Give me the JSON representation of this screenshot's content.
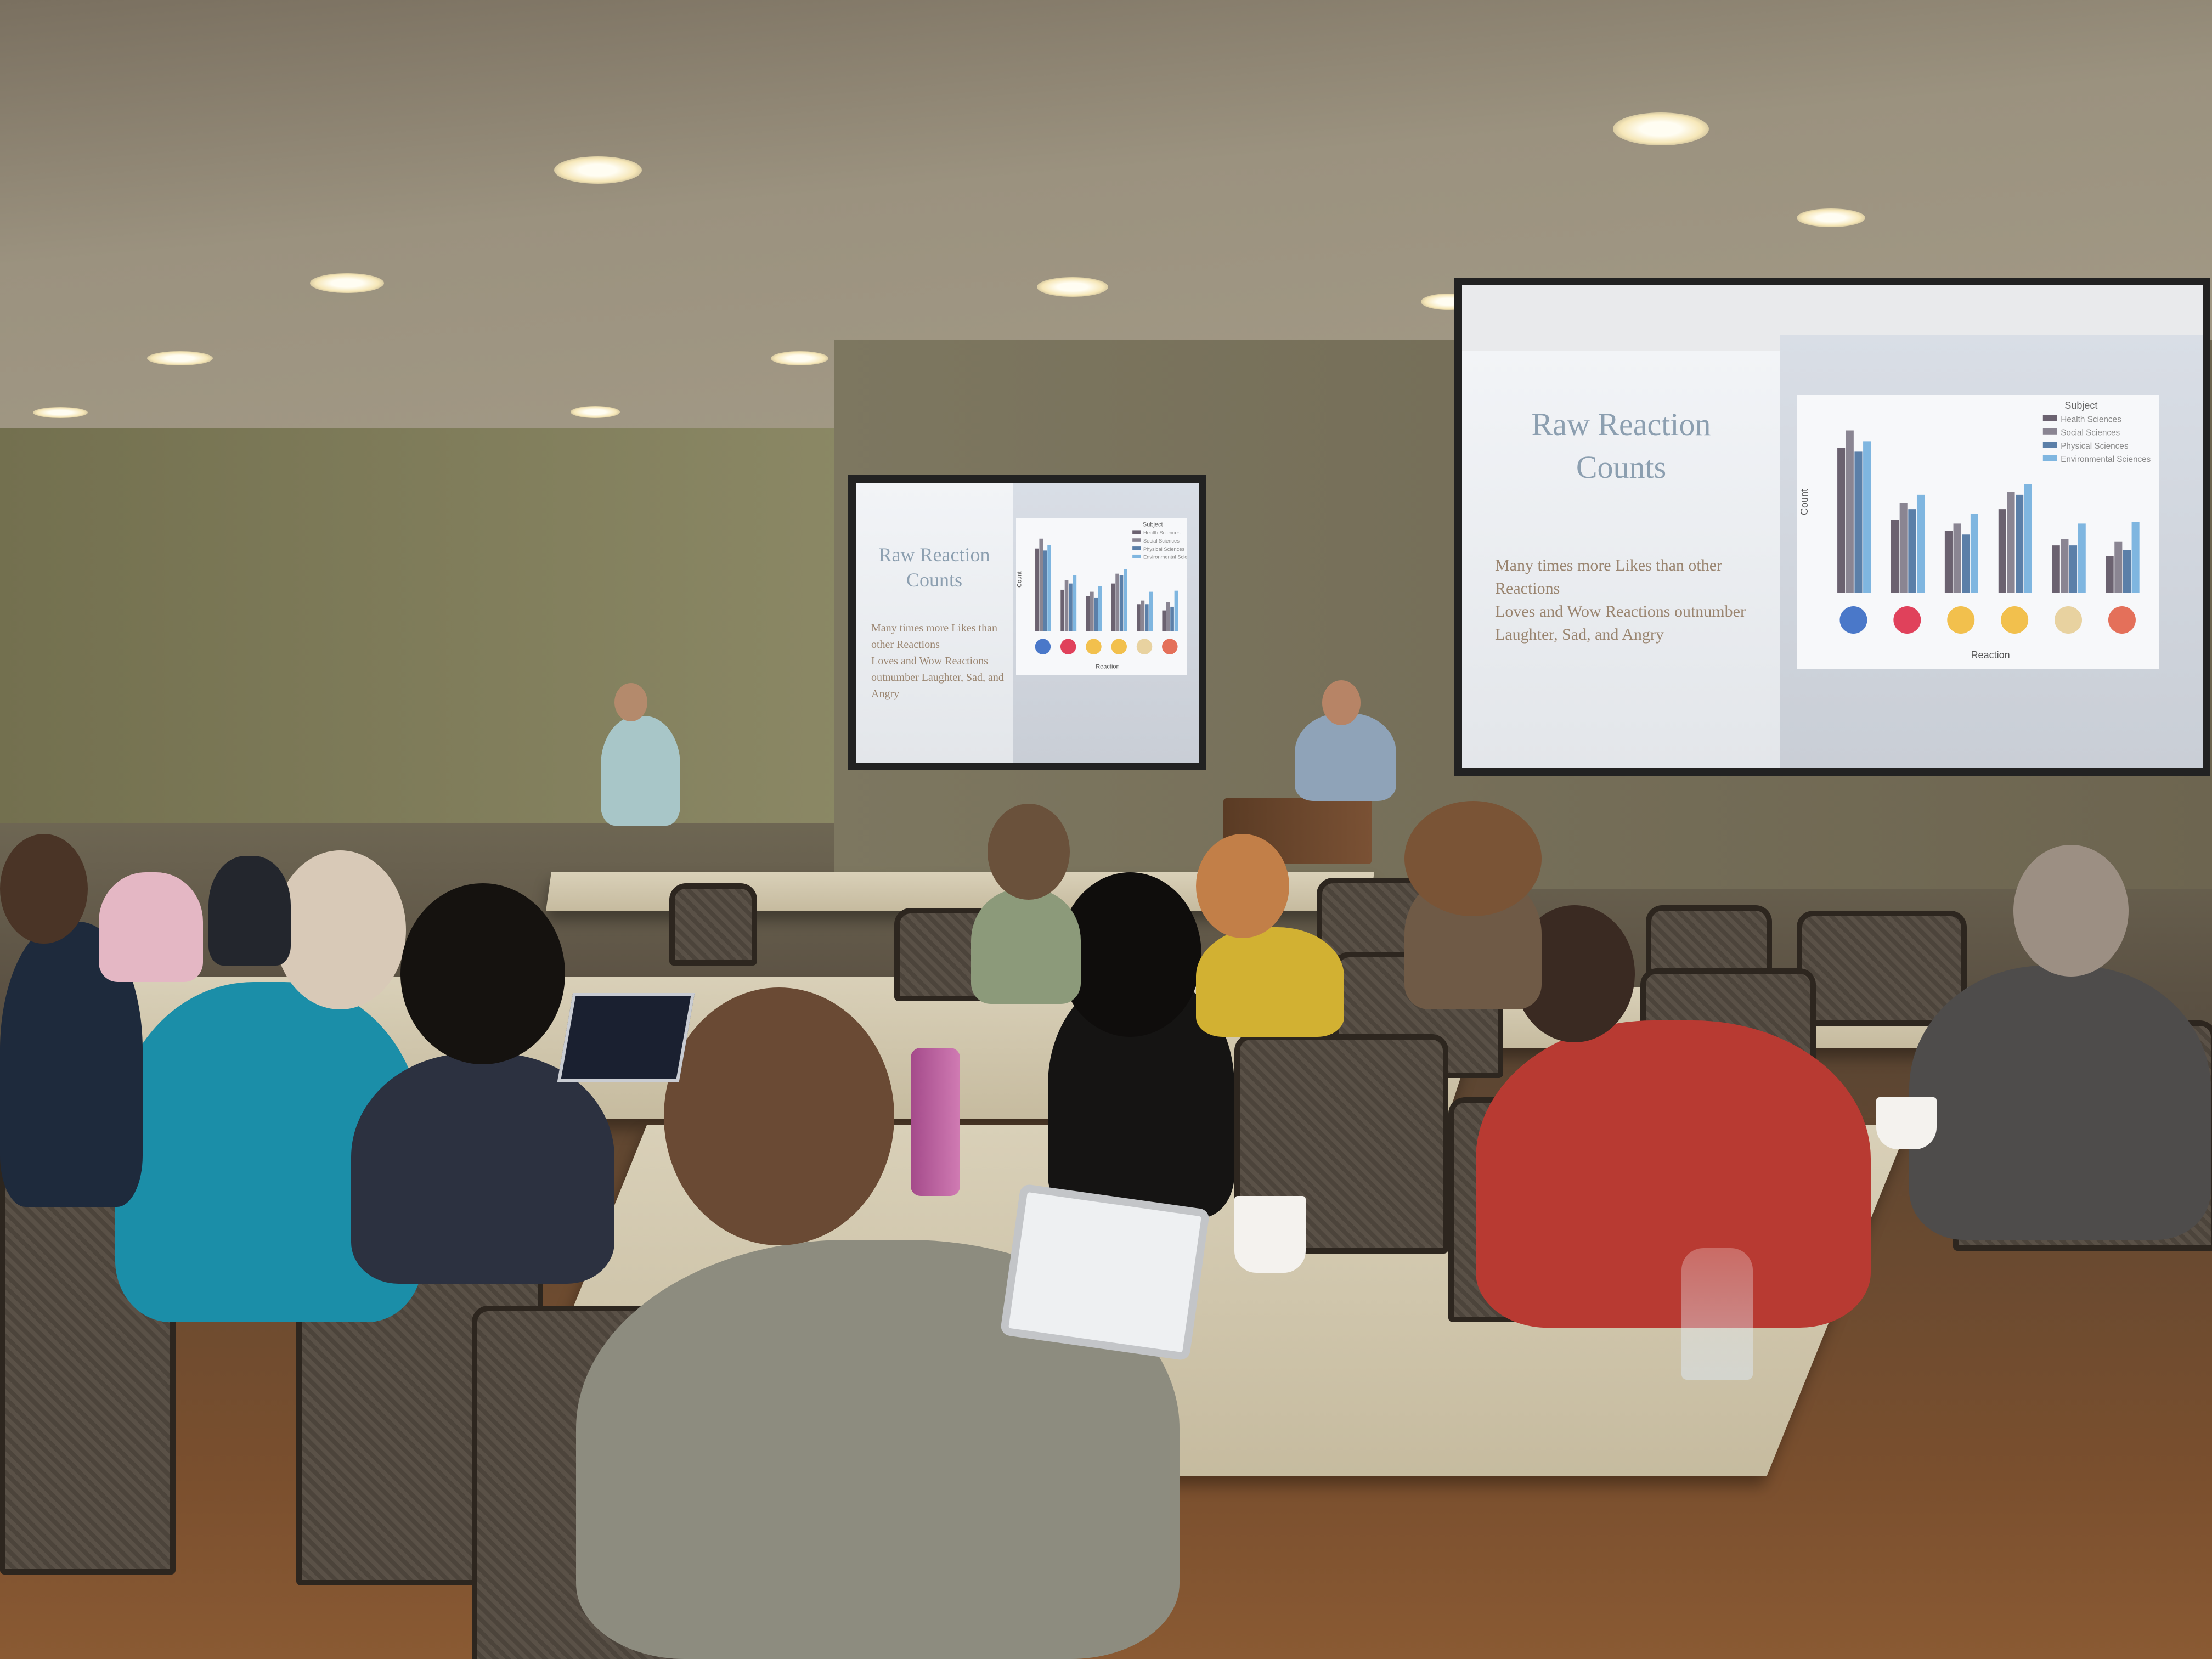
{
  "scene": {
    "description_colors": {
      "wall": "#7f7a62",
      "ceiling": "#a59c88",
      "floor": "#7a4f2e",
      "table": "#d2c8ad"
    }
  },
  "slide": {
    "title_line1": "Raw Reaction",
    "title_line2": "Counts",
    "bullets": [
      "Many times more Likes than other Reactions",
      "Loves and Wow Reactions outnumber Laughter, Sad, and Angry"
    ]
  },
  "chart_data": {
    "type": "bar",
    "title": "",
    "xlabel": "Reaction",
    "ylabel": "Count",
    "y_scale": "log",
    "legend_title": "Subject",
    "legend_placement": "top-right",
    "categories": [
      "like-icon",
      "love-icon",
      "haha-icon",
      "wow-icon",
      "sad-icon",
      "angry-icon"
    ],
    "series": [
      {
        "name": "Health Sciences",
        "color": "#6b6270",
        "values": [
          100000,
          1000,
          500,
          2000,
          200,
          100
        ]
      },
      {
        "name": "Social Sciences",
        "color": "#8a8592",
        "values": [
          300000,
          3000,
          800,
          6000,
          300,
          250
        ]
      },
      {
        "name": "Physical Sciences",
        "color": "#5b7fa8",
        "values": [
          80000,
          2000,
          400,
          5000,
          200,
          150
        ]
      },
      {
        "name": "Environmental Sciences",
        "color": "#7fb6e0",
        "values": [
          150000,
          5000,
          1500,
          10000,
          800,
          900
        ]
      }
    ]
  }
}
